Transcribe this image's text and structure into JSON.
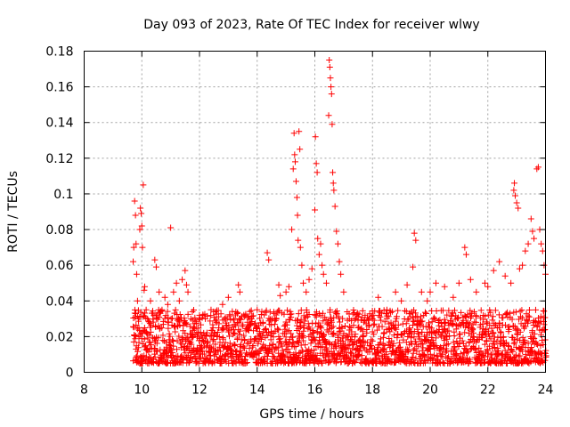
{
  "chart_data": {
    "type": "scatter",
    "title": "Day 093 of 2023, Rate Of TEC Index for receiver wlwy",
    "xlabel": "GPS time / hours",
    "ylabel": "ROTI / TECUs",
    "xlim": [
      8,
      24
    ],
    "ylim": [
      0,
      0.18
    ],
    "x_ticks": [
      8,
      10,
      12,
      14,
      16,
      18,
      20,
      22,
      24
    ],
    "y_ticks": [
      0,
      0.02,
      0.04,
      0.06,
      0.08,
      0.1,
      0.12,
      0.14,
      0.16,
      0.18
    ],
    "x_tick_labels": [
      "8",
      "10",
      "12",
      "14",
      "16",
      "18",
      "20",
      "22",
      "24"
    ],
    "y_tick_labels": [
      "0",
      "0.02",
      "0.04",
      "0.06",
      "0.08",
      "0.1",
      "0.12",
      "0.14",
      "0.16",
      "0.18"
    ],
    "grid": true,
    "marker": "plus",
    "color": "#ff0000",
    "series": [
      {
        "name": "ROTI",
        "points": [
          [
            9.7,
            0.062
          ],
          [
            9.72,
            0.07
          ],
          [
            9.75,
            0.096
          ],
          [
            9.78,
            0.088
          ],
          [
            9.8,
            0.072
          ],
          [
            9.82,
            0.055
          ],
          [
            9.85,
            0.04
          ],
          [
            9.88,
            0.03
          ],
          [
            9.9,
            0.025
          ],
          [
            9.93,
            0.08
          ],
          [
            9.95,
            0.092
          ],
          [
            9.98,
            0.089
          ],
          [
            10.0,
            0.082
          ],
          [
            10.02,
            0.07
          ],
          [
            10.05,
            0.105
          ],
          [
            10.08,
            0.046
          ],
          [
            10.1,
            0.048
          ],
          [
            10.15,
            0.035
          ],
          [
            10.2,
            0.03
          ],
          [
            10.3,
            0.04
          ],
          [
            10.45,
            0.063
          ],
          [
            10.5,
            0.059
          ],
          [
            10.6,
            0.045
          ],
          [
            10.7,
            0.035
          ],
          [
            10.8,
            0.042
          ],
          [
            10.9,
            0.038
          ],
          [
            11.0,
            0.081
          ],
          [
            11.1,
            0.045
          ],
          [
            11.2,
            0.05
          ],
          [
            11.3,
            0.04
          ],
          [
            11.4,
            0.052
          ],
          [
            11.5,
            0.057
          ],
          [
            11.55,
            0.049
          ],
          [
            11.6,
            0.045
          ],
          [
            11.7,
            0.03
          ],
          [
            11.8,
            0.025
          ],
          [
            12.0,
            0.032
          ],
          [
            12.2,
            0.03
          ],
          [
            12.4,
            0.035
          ],
          [
            12.6,
            0.028
          ],
          [
            12.8,
            0.038
          ],
          [
            13.0,
            0.042
          ],
          [
            13.2,
            0.03
          ],
          [
            13.35,
            0.049
          ],
          [
            13.4,
            0.045
          ],
          [
            13.6,
            0.032
          ],
          [
            13.8,
            0.03
          ],
          [
            14.0,
            0.035
          ],
          [
            14.2,
            0.028
          ],
          [
            14.35,
            0.067
          ],
          [
            14.4,
            0.063
          ],
          [
            14.6,
            0.03
          ],
          [
            14.75,
            0.049
          ],
          [
            14.8,
            0.043
          ],
          [
            15.0,
            0.045
          ],
          [
            15.1,
            0.048
          ],
          [
            15.2,
            0.08
          ],
          [
            15.25,
            0.114
          ],
          [
            15.28,
            0.134
          ],
          [
            15.3,
            0.122
          ],
          [
            15.32,
            0.118
          ],
          [
            15.35,
            0.107
          ],
          [
            15.38,
            0.098
          ],
          [
            15.4,
            0.088
          ],
          [
            15.42,
            0.074
          ],
          [
            15.45,
            0.135
          ],
          [
            15.48,
            0.125
          ],
          [
            15.5,
            0.07
          ],
          [
            15.55,
            0.06
          ],
          [
            15.6,
            0.05
          ],
          [
            15.7,
            0.045
          ],
          [
            15.8,
            0.052
          ],
          [
            15.9,
            0.058
          ],
          [
            16.0,
            0.091
          ],
          [
            16.02,
            0.132
          ],
          [
            16.05,
            0.117
          ],
          [
            16.08,
            0.112
          ],
          [
            16.1,
            0.075
          ],
          [
            16.15,
            0.066
          ],
          [
            16.2,
            0.072
          ],
          [
            16.25,
            0.06
          ],
          [
            16.3,
            0.055
          ],
          [
            16.4,
            0.05
          ],
          [
            16.48,
            0.144
          ],
          [
            16.5,
            0.175
          ],
          [
            16.52,
            0.171
          ],
          [
            16.54,
            0.165
          ],
          [
            16.56,
            0.16
          ],
          [
            16.58,
            0.156
          ],
          [
            16.6,
            0.139
          ],
          [
            16.62,
            0.112
          ],
          [
            16.64,
            0.106
          ],
          [
            16.66,
            0.102
          ],
          [
            16.7,
            0.093
          ],
          [
            16.75,
            0.079
          ],
          [
            16.8,
            0.072
          ],
          [
            16.85,
            0.062
          ],
          [
            16.9,
            0.055
          ],
          [
            17.0,
            0.045
          ],
          [
            17.2,
            0.03
          ],
          [
            17.5,
            0.025
          ],
          [
            17.8,
            0.022
          ],
          [
            18.0,
            0.03
          ],
          [
            18.2,
            0.042
          ],
          [
            18.5,
            0.035
          ],
          [
            18.8,
            0.045
          ],
          [
            19.0,
            0.04
          ],
          [
            19.2,
            0.049
          ],
          [
            19.4,
            0.059
          ],
          [
            19.45,
            0.078
          ],
          [
            19.5,
            0.074
          ],
          [
            19.7,
            0.045
          ],
          [
            19.9,
            0.04
          ],
          [
            20.0,
            0.045
          ],
          [
            20.2,
            0.05
          ],
          [
            20.5,
            0.048
          ],
          [
            20.8,
            0.042
          ],
          [
            21.0,
            0.05
          ],
          [
            21.2,
            0.07
          ],
          [
            21.25,
            0.066
          ],
          [
            21.4,
            0.052
          ],
          [
            21.6,
            0.045
          ],
          [
            21.9,
            0.05
          ],
          [
            22.0,
            0.048
          ],
          [
            22.2,
            0.057
          ],
          [
            22.4,
            0.062
          ],
          [
            22.6,
            0.054
          ],
          [
            22.8,
            0.05
          ],
          [
            22.9,
            0.102
          ],
          [
            22.92,
            0.106
          ],
          [
            22.95,
            0.099
          ],
          [
            23.0,
            0.095
          ],
          [
            23.05,
            0.092
          ],
          [
            23.1,
            0.058
          ],
          [
            23.2,
            0.06
          ],
          [
            23.3,
            0.068
          ],
          [
            23.4,
            0.072
          ],
          [
            23.5,
            0.086
          ],
          [
            23.55,
            0.079
          ],
          [
            23.6,
            0.075
          ],
          [
            23.7,
            0.114
          ],
          [
            23.75,
            0.115
          ],
          [
            23.8,
            0.08
          ],
          [
            23.85,
            0.072
          ],
          [
            23.9,
            0.068
          ],
          [
            23.95,
            0.06
          ],
          [
            24.0,
            0.055
          ]
        ],
        "baseline_band": {
          "x_range": [
            9.7,
            24
          ],
          "typical_range": [
            0.005,
            0.035
          ],
          "note": "dense band of low ROTI values across the whole observation window"
        }
      }
    ]
  }
}
